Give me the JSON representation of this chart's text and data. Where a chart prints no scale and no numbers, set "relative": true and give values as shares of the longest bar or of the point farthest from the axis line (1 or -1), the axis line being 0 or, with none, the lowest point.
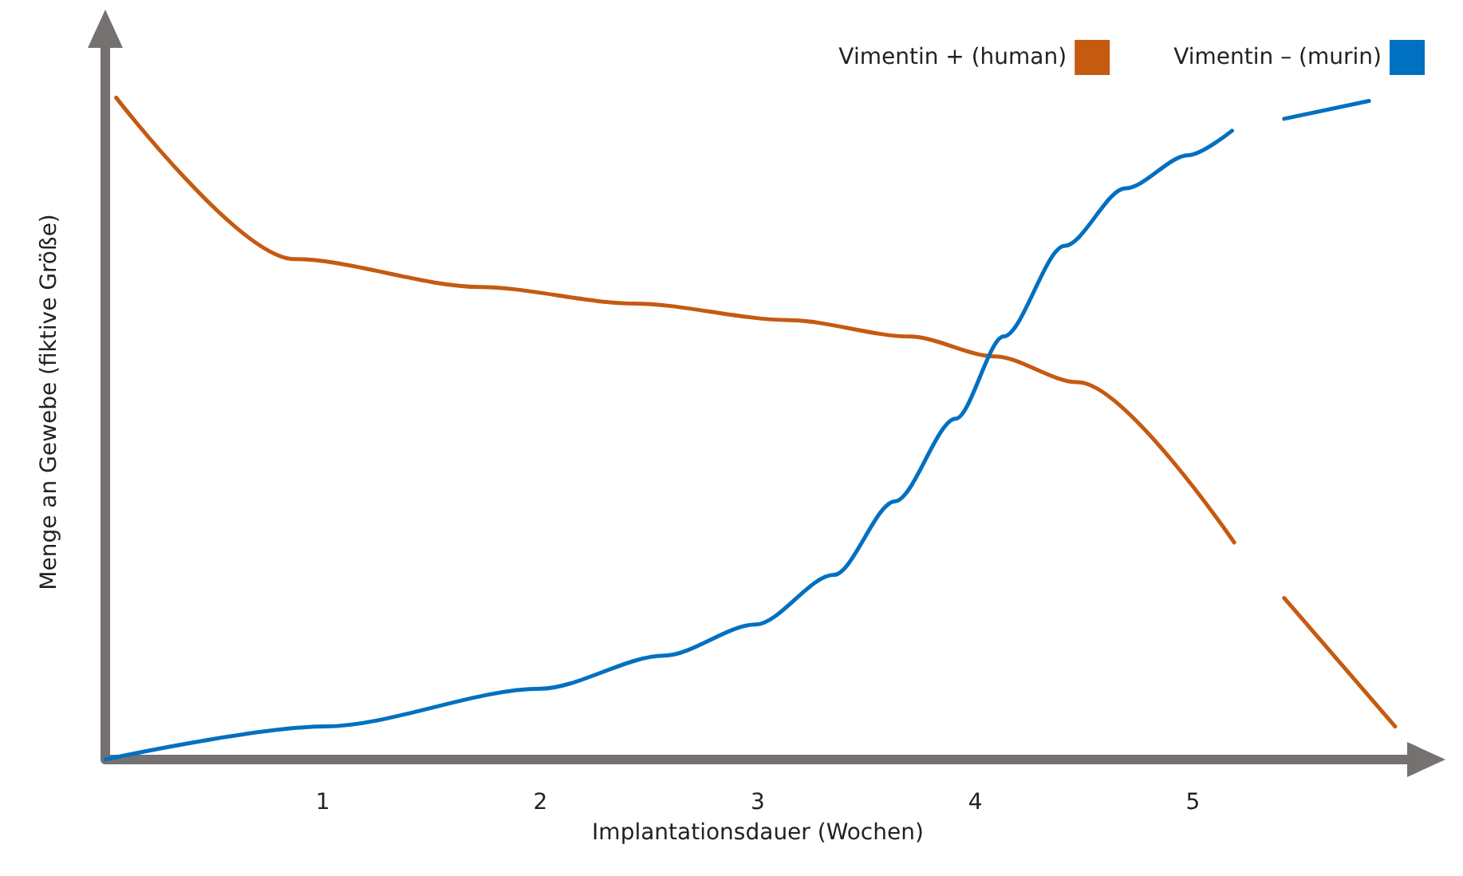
{
  "chart_data": {
    "type": "line",
    "relative": true,
    "xlabel": "Implantationsdauer (Wochen)",
    "ylabel": "Menge an Gewebe (fiktive Größe)",
    "xlim": [
      0,
      6
    ],
    "xticks": [
      1,
      2,
      3,
      4,
      5
    ],
    "grid": false,
    "legend": "top right",
    "marker": "none",
    "line_style": "solid",
    "series": [
      {
        "name": "Vimentin + (human)",
        "color": "#c55a11",
        "x": [
          0.05,
          0.87,
          1.72,
          2.43,
          3.14,
          3.7,
          4.09,
          4.47,
          5.19,
          5.3,
          5.42,
          5.93
        ],
        "values": [
          1.0,
          0.756,
          0.714,
          0.689,
          0.664,
          0.639,
          0.609,
          0.57,
          0.328,
          null,
          0.244,
          0.05
        ]
      },
      {
        "name": "Vimentin – (murin)",
        "color": "#0070c0",
        "x": [
          0,
          1.01,
          2.0,
          2.57,
          2.99,
          3.35,
          3.63,
          3.91,
          4.13,
          4.41,
          4.69,
          4.98,
          5.18,
          5.3,
          5.42,
          5.81
        ],
        "values": [
          0,
          0.05,
          0.107,
          0.157,
          0.204,
          0.279,
          0.39,
          0.515,
          0.639,
          0.776,
          0.863,
          0.913,
          0.95,
          null,
          0.968,
          0.995
        ]
      }
    ]
  }
}
